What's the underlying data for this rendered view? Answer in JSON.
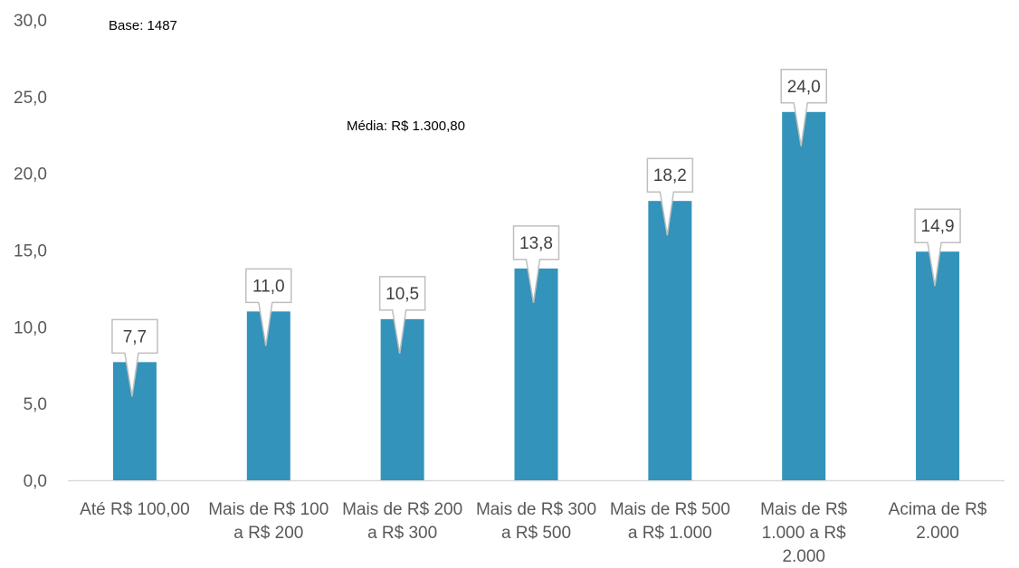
{
  "chart_data": {
    "type": "bar",
    "categories": [
      [
        "Até R$ 100,00"
      ],
      [
        "Mais de R$ 100",
        "a R$ 200"
      ],
      [
        "Mais de R$ 200",
        "a R$ 300"
      ],
      [
        "Mais de R$ 300",
        "a R$ 500"
      ],
      [
        "Mais de R$ 500",
        "a R$ 1.000"
      ],
      [
        "Mais de R$",
        "1.000 a R$",
        "2.000"
      ],
      [
        "Acima de R$",
        "2.000"
      ]
    ],
    "values": [
      7.7,
      11.0,
      10.5,
      13.8,
      18.2,
      24.0,
      14.9
    ],
    "data_labels": [
      "7,7",
      "11,0",
      "10,5",
      "13,8",
      "18,2",
      "24,0",
      "14,9"
    ],
    "y_ticks": [
      "0,0",
      "5,0",
      "10,0",
      "15,0",
      "20,0",
      "25,0",
      "30,0"
    ],
    "ylim": [
      0,
      30
    ],
    "grid": false,
    "annotations": {
      "base": "Base: 1487",
      "mean": "Média: R$ 1.300,80"
    },
    "colors": {
      "bar": "#3393BA",
      "callout_border": "#BFBFBF",
      "axis": "#D9D9D9"
    }
  }
}
